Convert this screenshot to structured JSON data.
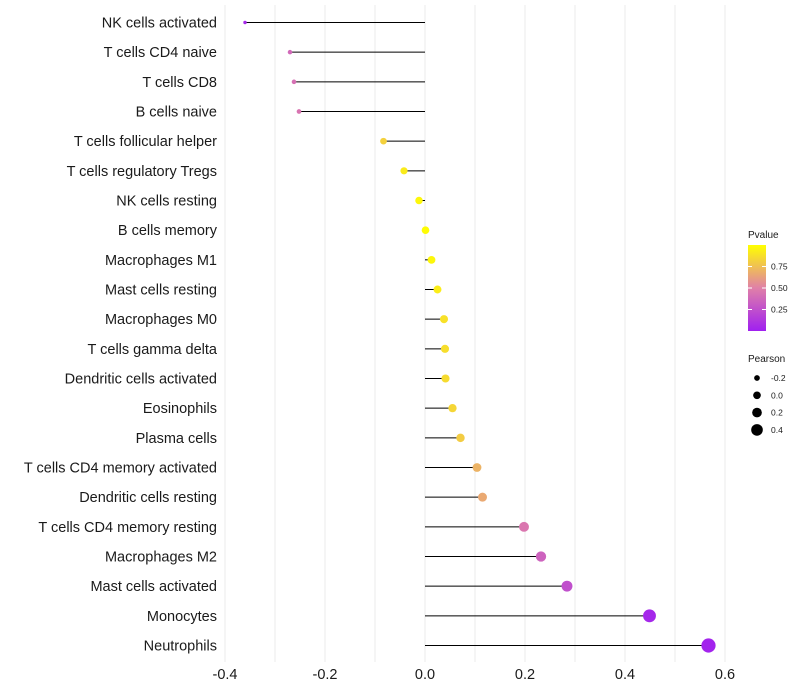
{
  "chart_data": {
    "type": "lollipop",
    "xlabel": "",
    "ylabel": "",
    "xlim": [
      -0.4,
      0.6
    ],
    "x_ticks": [
      -0.4,
      -0.2,
      0.0,
      0.2,
      0.4,
      0.6
    ],
    "x_tick_labels": [
      "-0.4",
      "-0.2",
      "0.0",
      "0.2",
      "0.4",
      "0.6"
    ],
    "categories": [
      "NK cells activated",
      "T cells CD4 naive",
      "T cells CD8",
      "B cells naive",
      "T cells follicular helper",
      "T cells regulatory  Tregs",
      "NK cells resting",
      "B cells memory",
      "Macrophages M1",
      "Mast cells resting",
      "Macrophages M0",
      "T cells gamma delta",
      "Dendritic cells activated",
      "Eosinophils",
      "Plasma cells",
      "T cells CD4 memory activated",
      "Dendritic cells resting",
      "T cells CD4 memory resting",
      "Macrophages M2",
      "Mast cells activated",
      "Monocytes",
      "Neutrophils"
    ],
    "pearson": [
      -0.36,
      -0.27,
      -0.262,
      -0.252,
      -0.083,
      -0.042,
      -0.012,
      0.001,
      0.013,
      0.025,
      0.038,
      0.04,
      0.041,
      0.055,
      0.071,
      0.104,
      0.115,
      0.198,
      0.232,
      0.284,
      0.449,
      0.567
    ],
    "pvalue": [
      0.05,
      0.38,
      0.42,
      0.44,
      0.82,
      0.92,
      0.97,
      0.99,
      0.97,
      0.93,
      0.88,
      0.87,
      0.86,
      0.84,
      0.8,
      0.7,
      0.66,
      0.45,
      0.35,
      0.25,
      0.04,
      0.02
    ],
    "color_legend": {
      "title": "Pvalue",
      "ticks": [
        0.25,
        0.5,
        0.75
      ],
      "tick_labels": [
        "0.25",
        "0.50",
        "0.75"
      ],
      "range": [
        0.0,
        1.0
      ],
      "low_color": "#a020f0",
      "mid_color": "#e080a8",
      "high_color": "#ffff00"
    },
    "size_legend": {
      "title": "Pearson",
      "values": [
        -0.2,
        0.0,
        0.2,
        0.4
      ],
      "labels": [
        "-0.2",
        "0.0",
        "0.2",
        "0.4"
      ]
    },
    "legend_position": "right"
  }
}
